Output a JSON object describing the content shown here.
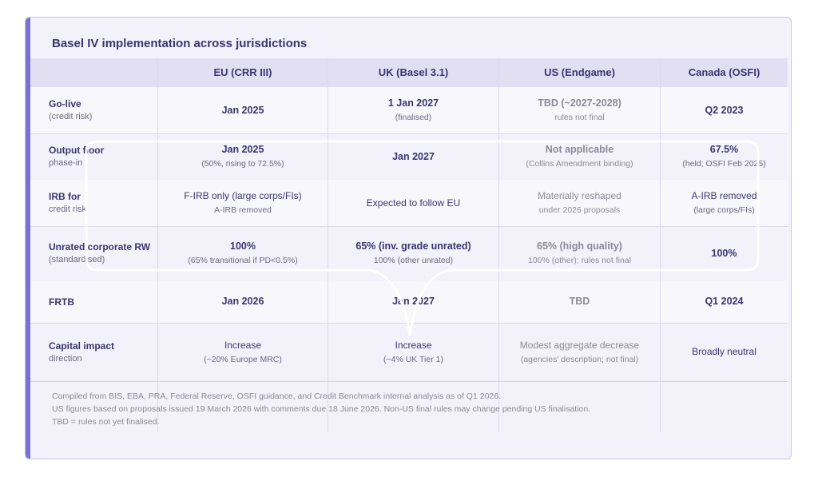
{
  "title": "Basel IV implementation across jurisdictions",
  "headers": [
    "EU (CRR III)",
    "UK (Basel 3.1)",
    "US (Endgame)",
    "Canada (OSFI)"
  ],
  "rows": [
    {
      "label": "Go-live",
      "sublabel": "(credit risk)",
      "cells": [
        {
          "main": "Jan 2025",
          "sub": ""
        },
        {
          "main": "1 Jan 2027",
          "sub": "(finalised)"
        },
        {
          "main": "TBD (~2027-2028)",
          "sub": "rules not final"
        },
        {
          "main": "Q2 2023",
          "sub": ""
        }
      ]
    },
    {
      "label": "Output floor",
      "sublabel": "phase-in",
      "cells": [
        {
          "main": "Jan 2025",
          "sub": "(50%, rising to 72.5%)"
        },
        {
          "main": "Jan 2027",
          "sub": ""
        },
        {
          "main": "Not applicable",
          "sub": "(Collins Amendment binding)"
        },
        {
          "main": "67.5%",
          "sub": "(held; OSFI Feb 2025)"
        }
      ]
    },
    {
      "label": "IRB for",
      "sublabel": "credit risk",
      "cells": [
        {
          "main": "F-IRB only (large corps/FIs)",
          "sub": "A-IRB removed"
        },
        {
          "main": "Expected to follow EU",
          "sub": ""
        },
        {
          "main": "Materially reshaped",
          "sub": "under 2026 proposals"
        },
        {
          "main": "A-IRB removed",
          "sub": "(large corps/FIs)"
        }
      ]
    },
    {
      "label": "Unrated corporate RW",
      "sublabel": "(standardised)",
      "cells": [
        {
          "main": "100%",
          "sub": "(65% transitional if PD<0.5%)"
        },
        {
          "main": "65% (inv. grade unrated)",
          "sub": "100% (other unrated)"
        },
        {
          "main": "65% (high quality)",
          "sub": "100% (other); rules not final"
        },
        {
          "main": "100%",
          "sub": ""
        }
      ]
    },
    {
      "label": "FRTB",
      "sublabel": "",
      "cells": [
        {
          "main": "Jan 2026",
          "sub": ""
        },
        {
          "main": "Jan 2027",
          "sub": ""
        },
        {
          "main": "TBD",
          "sub": ""
        },
        {
          "main": "Q1 2024",
          "sub": ""
        }
      ]
    },
    {
      "label": "Capital impact",
      "sublabel": "direction",
      "cells": [
        {
          "main": "Increase",
          "sub": "(~20% Europe MRC)"
        },
        {
          "main": "Increase",
          "sub": "(~4% UK Tier 1)"
        },
        {
          "main": "Modest aggregate decrease",
          "sub": "(agencies' description; not final)"
        },
        {
          "main": "Broadly neutral",
          "sub": ""
        }
      ]
    }
  ],
  "footnotes": [
    "Compiled from BIS, EBA, PRA, Federal Reserve, OSFI guidance, and Credit Benchmark internal analysis as of Q1 2026.",
    "US figures based on proposals issued 19 March 2026 with comments due 18 June 2026. Non-US final rules may change pending US finalisation.",
    "TBD = rules not yet finalised."
  ],
  "colors": {
    "accent": "#7b72d0",
    "text": "#3a3570",
    "muted": "#8c8a99"
  }
}
